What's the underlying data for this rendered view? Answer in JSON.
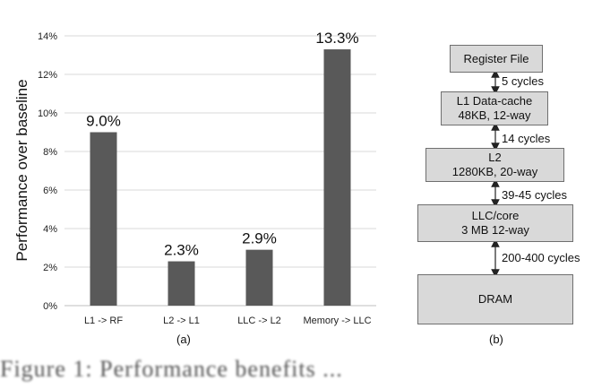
{
  "chart_data": {
    "type": "bar",
    "title": "",
    "xlabel": "",
    "ylabel": "Performance over baseline",
    "ylim": [
      0,
      14
    ],
    "yticks": [
      "0%",
      "2%",
      "4%",
      "6%",
      "8%",
      "10%",
      "12%",
      "14%"
    ],
    "grid": true,
    "categories": [
      "L1 -> RF",
      "L2 -> L1",
      "LLC -> L2",
      "Memory -> LLC"
    ],
    "values": [
      9.0,
      2.3,
      2.9,
      13.3
    ],
    "data_labels": [
      "9.0%",
      "2.3%",
      "2.9%",
      "13.3%"
    ],
    "bar_color": "#595959",
    "caption": "(a)"
  },
  "hierarchy": {
    "caption": "(b)",
    "levels": [
      {
        "line1": "Register File",
        "line2": ""
      },
      {
        "line1": "L1 Data-cache",
        "line2": "48KB, 12-way"
      },
      {
        "line1": "L2",
        "line2": "1280KB, 20-way"
      },
      {
        "line1": "LLC/core",
        "line2": "3 MB 12-way"
      },
      {
        "line1": "DRAM",
        "line2": ""
      }
    ],
    "latencies": [
      "5 cycles",
      "14 cycles",
      "39-45 cycles",
      "200-400 cycles"
    ]
  },
  "figure_caption_partial": "Figure 1: Performance benefits ..."
}
